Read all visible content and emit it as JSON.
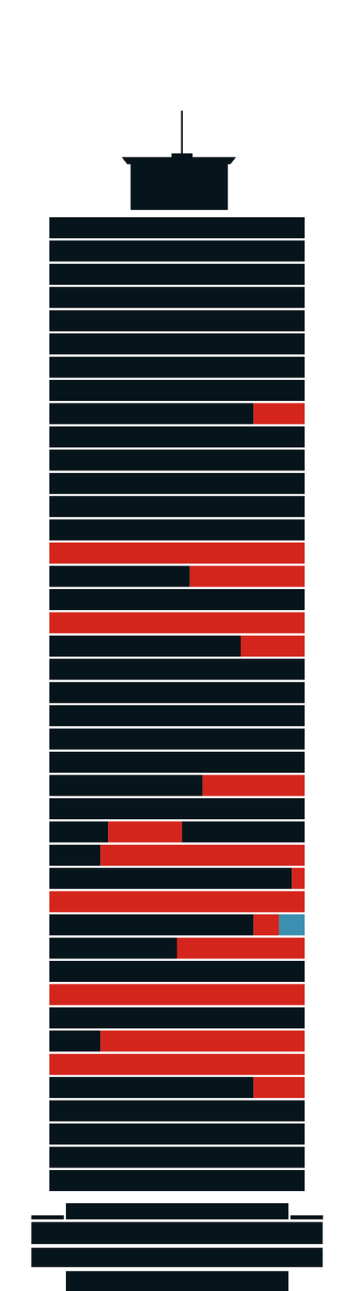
{
  "chart_data": {
    "type": "bar",
    "orientation": "horizontal",
    "stacked": true,
    "tick_labels": false,
    "xlim": [
      0,
      100
    ],
    "categories": [
      null,
      null,
      null,
      null,
      null,
      null,
      null,
      null,
      null,
      null,
      null,
      null,
      null,
      null,
      null,
      null,
      null,
      null,
      null,
      null,
      null,
      null,
      null,
      null,
      null,
      null,
      null,
      null,
      null,
      null,
      null,
      null,
      null,
      null,
      null,
      null,
      null,
      null,
      null,
      null,
      null,
      null
    ],
    "series": [
      {
        "color": "#06141b",
        "values": [
          100,
          100,
          100,
          100,
          100,
          100,
          100,
          100,
          80,
          100,
          100,
          100,
          100,
          100,
          0,
          55,
          100,
          0,
          75,
          100,
          100,
          100,
          100,
          100,
          60,
          100,
          23,
          20,
          95,
          0,
          80,
          50,
          100,
          0,
          100,
          20,
          0,
          80,
          100,
          100,
          100,
          100
        ]
      },
      {
        "color": "#d4251c",
        "values": [
          0,
          0,
          0,
          0,
          0,
          0,
          0,
          0,
          20,
          0,
          0,
          0,
          0,
          0,
          100,
          45,
          0,
          100,
          25,
          0,
          0,
          0,
          0,
          0,
          40,
          0,
          29,
          80,
          5,
          100,
          10,
          50,
          0,
          100,
          0,
          80,
          100,
          20,
          0,
          0,
          0,
          0
        ]
      },
      {
        "color": "#3b8fb0",
        "values": [
          0,
          0,
          0,
          0,
          0,
          0,
          0,
          0,
          0,
          0,
          0,
          0,
          0,
          0,
          0,
          0,
          0,
          0,
          0,
          0,
          0,
          0,
          0,
          0,
          0,
          0,
          0,
          0,
          0,
          0,
          10,
          0,
          0,
          0,
          0,
          0,
          0,
          0,
          0,
          0,
          0,
          0
        ]
      },
      {
        "color": "#06141b",
        "values": [
          0,
          0,
          0,
          0,
          0,
          0,
          0,
          0,
          0,
          0,
          0,
          0,
          0,
          0,
          0,
          0,
          0,
          0,
          0,
          0,
          0,
          0,
          0,
          0,
          0,
          0,
          48,
          0,
          0,
          0,
          0,
          0,
          0,
          0,
          0,
          0,
          0,
          0,
          0,
          0,
          0,
          0
        ]
      }
    ]
  }
}
